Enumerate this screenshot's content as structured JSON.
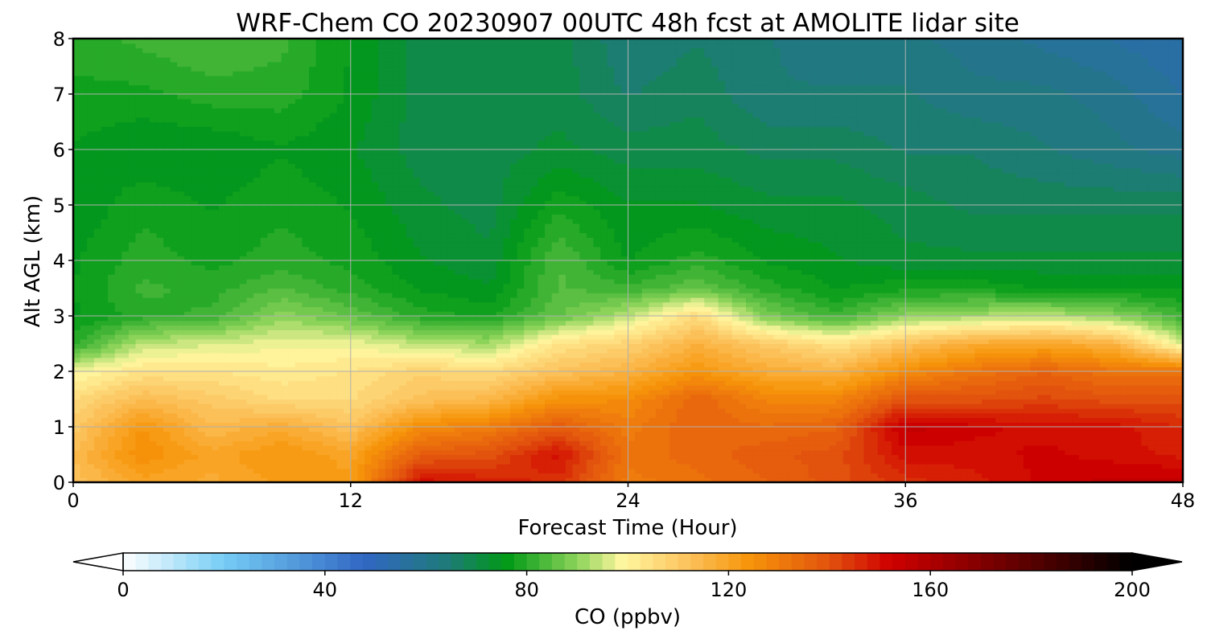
{
  "chart_data": {
    "type": "heatmap",
    "title": "WRF-Chem CO  20230907 00UTC 48h fcst at AMOLITE lidar site",
    "xlabel": "Forecast Time (Hour)",
    "ylabel": "Alt AGL (km)",
    "xlim": [
      0,
      48
    ],
    "ylim": [
      0,
      8
    ],
    "x_ticks": [
      0,
      12,
      24,
      36,
      48
    ],
    "y_ticks": [
      0,
      1,
      2,
      3,
      4,
      5,
      6,
      7,
      8
    ],
    "grid": true,
    "x": [
      0,
      3,
      6,
      9,
      12,
      15,
      18,
      21,
      24,
      27,
      30,
      33,
      36,
      39,
      42,
      45,
      48
    ],
    "y": [
      0,
      0.5,
      1,
      1.5,
      2,
      2.5,
      3,
      3.5,
      4,
      5,
      6,
      7,
      8
    ],
    "z": [
      [
        112,
        120,
        118,
        122,
        122,
        150,
        148,
        145,
        130,
        133,
        136,
        140,
        145,
        148,
        152,
        155,
        155
      ],
      [
        114,
        126,
        120,
        124,
        120,
        138,
        140,
        150,
        132,
        135,
        138,
        140,
        150,
        150,
        152,
        150,
        148
      ],
      [
        110,
        124,
        114,
        118,
        112,
        126,
        130,
        138,
        130,
        136,
        134,
        136,
        155,
        152,
        150,
        150,
        146
      ],
      [
        106,
        114,
        110,
        106,
        106,
        112,
        115,
        125,
        126,
        136,
        128,
        128,
        140,
        140,
        142,
        140,
        140
      ],
      [
        98,
        104,
        104,
        102,
        104,
        108,
        106,
        112,
        116,
        124,
        118,
        116,
        126,
        132,
        136,
        132,
        132
      ],
      [
        80,
        94,
        96,
        98,
        98,
        94,
        92,
        104,
        108,
        116,
        110,
        104,
        112,
        118,
        120,
        116,
        96
      ],
      [
        76,
        80,
        82,
        90,
        86,
        80,
        78,
        86,
        94,
        106,
        88,
        82,
        90,
        92,
        94,
        90,
        82
      ],
      [
        76,
        82,
        80,
        84,
        80,
        76,
        74,
        84,
        82,
        86,
        80,
        76,
        78,
        78,
        76,
        76,
        76
      ],
      [
        76,
        80,
        78,
        80,
        78,
        74,
        72,
        84,
        76,
        80,
        76,
        74,
        72,
        72,
        72,
        72,
        72
      ],
      [
        74,
        78,
        76,
        78,
        76,
        72,
        70,
        78,
        74,
        74,
        72,
        72,
        70,
        68,
        68,
        68,
        68
      ],
      [
        76,
        74,
        74,
        76,
        74,
        70,
        70,
        72,
        70,
        70,
        68,
        68,
        66,
        66,
        64,
        62,
        60
      ],
      [
        78,
        78,
        80,
        80,
        76,
        70,
        70,
        70,
        66,
        68,
        64,
        64,
        64,
        62,
        62,
        60,
        56
      ],
      [
        80,
        82,
        84,
        82,
        76,
        70,
        70,
        70,
        64,
        66,
        64,
        62,
        62,
        60,
        58,
        56,
        54
      ]
    ],
    "colorbar": {
      "label": "CO  (ppbv)",
      "min": 0,
      "max": 200,
      "ticks": [
        0,
        40,
        80,
        120,
        160,
        200
      ],
      "extend": "both",
      "location": "bottom",
      "stops": [
        {
          "value": 0,
          "color": "#ffffff"
        },
        {
          "value": 20,
          "color": "#75cdf5"
        },
        {
          "value": 48,
          "color": "#3167c3"
        },
        {
          "value": 64,
          "color": "#1f7a7a"
        },
        {
          "value": 76,
          "color": "#009a16"
        },
        {
          "value": 90,
          "color": "#8cd35a"
        },
        {
          "value": 99,
          "color": "#fff7a0"
        },
        {
          "value": 112,
          "color": "#fcc25c"
        },
        {
          "value": 124,
          "color": "#f7950a"
        },
        {
          "value": 140,
          "color": "#e2530e"
        },
        {
          "value": 152,
          "color": "#cf0000"
        },
        {
          "value": 172,
          "color": "#7a0000"
        },
        {
          "value": 200,
          "color": "#000000"
        }
      ]
    }
  }
}
